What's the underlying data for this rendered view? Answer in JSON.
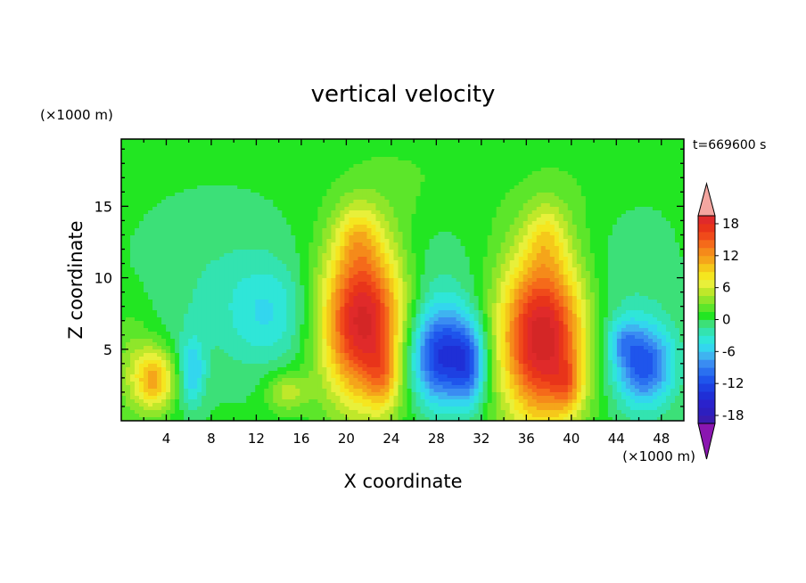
{
  "chart_data": {
    "type": "heatmap",
    "title": "vertical velocity",
    "xlabel": "X coordinate",
    "ylabel": "Z coordinate",
    "x_unit_label": "(×1000 m)",
    "y_unit_label": "(×1000 m)",
    "time_label": "t=669600 s",
    "xlim": [
      0,
      50
    ],
    "ylim": [
      0,
      19.7
    ],
    "x_ticks": [
      4,
      8,
      12,
      16,
      20,
      24,
      28,
      32,
      36,
      40,
      44,
      48
    ],
    "y_ticks": [
      5,
      10,
      15
    ],
    "background_value": 0.5,
    "colorbar": {
      "levels": [
        -21,
        -19.5,
        -18,
        -16.5,
        -15,
        -13.5,
        -12,
        -10.5,
        -9,
        -7.5,
        -6,
        -4.5,
        -3,
        -1.5,
        0,
        1.5,
        3,
        4.5,
        6,
        7.5,
        9,
        10.5,
        12,
        13.5,
        15,
        16.5,
        18,
        19.5,
        21
      ],
      "colors": [
        "#4a1aa8",
        "#3a1cb0",
        "#2d1fbf",
        "#2a22cc",
        "#1f2fd6",
        "#1e40e2",
        "#1f55ec",
        "#2a70f0",
        "#3a8cf2",
        "#3fb3f0",
        "#33d6ee",
        "#2fe6d8",
        "#33e3b0",
        "#3ce078",
        "#22e622",
        "#5ce62a",
        "#8fe62a",
        "#bfe82a",
        "#e8f03a",
        "#f5e61f",
        "#f5c81a",
        "#f5a51a",
        "#f58a1a",
        "#f56a1a",
        "#f04a1a",
        "#e8341a",
        "#e02a2a",
        "#d42626"
      ],
      "tick_labels": [
        18,
        12,
        6,
        0,
        -6,
        -12,
        -18
      ],
      "over_color": "#f4a6a0",
      "under_color": "#8a16b0"
    },
    "features": [
      {
        "x": 21.5,
        "z": 7.0,
        "sx": 2.6,
        "sz": 4.0,
        "amp": 20
      },
      {
        "x": 23.3,
        "z": 3.0,
        "sx": 1.0,
        "sz": 1.6,
        "amp": 5
      },
      {
        "x": 21.0,
        "z": 13.0,
        "sx": 1.3,
        "sz": 1.6,
        "amp": 4
      },
      {
        "x": 37.5,
        "z": 5.8,
        "sx": 2.7,
        "sz": 4.2,
        "amp": 21
      },
      {
        "x": 39.7,
        "z": 2.5,
        "sx": 0.9,
        "sz": 1.3,
        "amp": 5
      },
      {
        "x": 37.8,
        "z": 13.0,
        "sx": 1.3,
        "sz": 1.7,
        "amp": 4
      },
      {
        "x": 3.0,
        "z": 2.9,
        "sx": 1.3,
        "sz": 1.5,
        "amp": 10
      },
      {
        "x": 14.7,
        "z": 2.0,
        "sx": 1.3,
        "sz": 1.0,
        "amp": 5
      },
      {
        "x": 28.5,
        "z": 4.5,
        "sx": 2.1,
        "sz": 2.4,
        "amp": -14
      },
      {
        "x": 31.0,
        "z": 3.8,
        "sx": 1.0,
        "sz": 2.0,
        "amp": -7
      },
      {
        "x": 46.5,
        "z": 3.9,
        "sx": 1.8,
        "sz": 2.0,
        "amp": -11
      },
      {
        "x": 44.5,
        "z": 5.6,
        "sx": 1.0,
        "sz": 1.1,
        "amp": -4
      },
      {
        "x": 6.3,
        "z": 3.4,
        "sx": 0.8,
        "sz": 1.7,
        "amp": -6
      },
      {
        "x": 13.2,
        "z": 7.5,
        "sx": 2.6,
        "sz": 2.5,
        "amp": -4
      },
      {
        "x": 8.5,
        "z": 9.0,
        "sx": 5.5,
        "sz": 4.5,
        "amp": -2
      },
      {
        "x": 27.5,
        "z": 10.5,
        "sx": 3.0,
        "sz": 4.0,
        "amp": -2
      },
      {
        "x": 43.5,
        "z": 8.5,
        "sx": 4.0,
        "sz": 6.0,
        "amp": -2
      },
      {
        "x": 26.5,
        "z": 16.0,
        "sx": 4.5,
        "sz": 3.0,
        "amp": 1.5
      },
      {
        "x": 41.0,
        "z": 16.0,
        "sx": 3.5,
        "sz": 3.0,
        "amp": 1.2
      },
      {
        "x": 1.0,
        "z": 4.0,
        "sx": 1.5,
        "sz": 3.0,
        "amp": 3
      }
    ]
  }
}
